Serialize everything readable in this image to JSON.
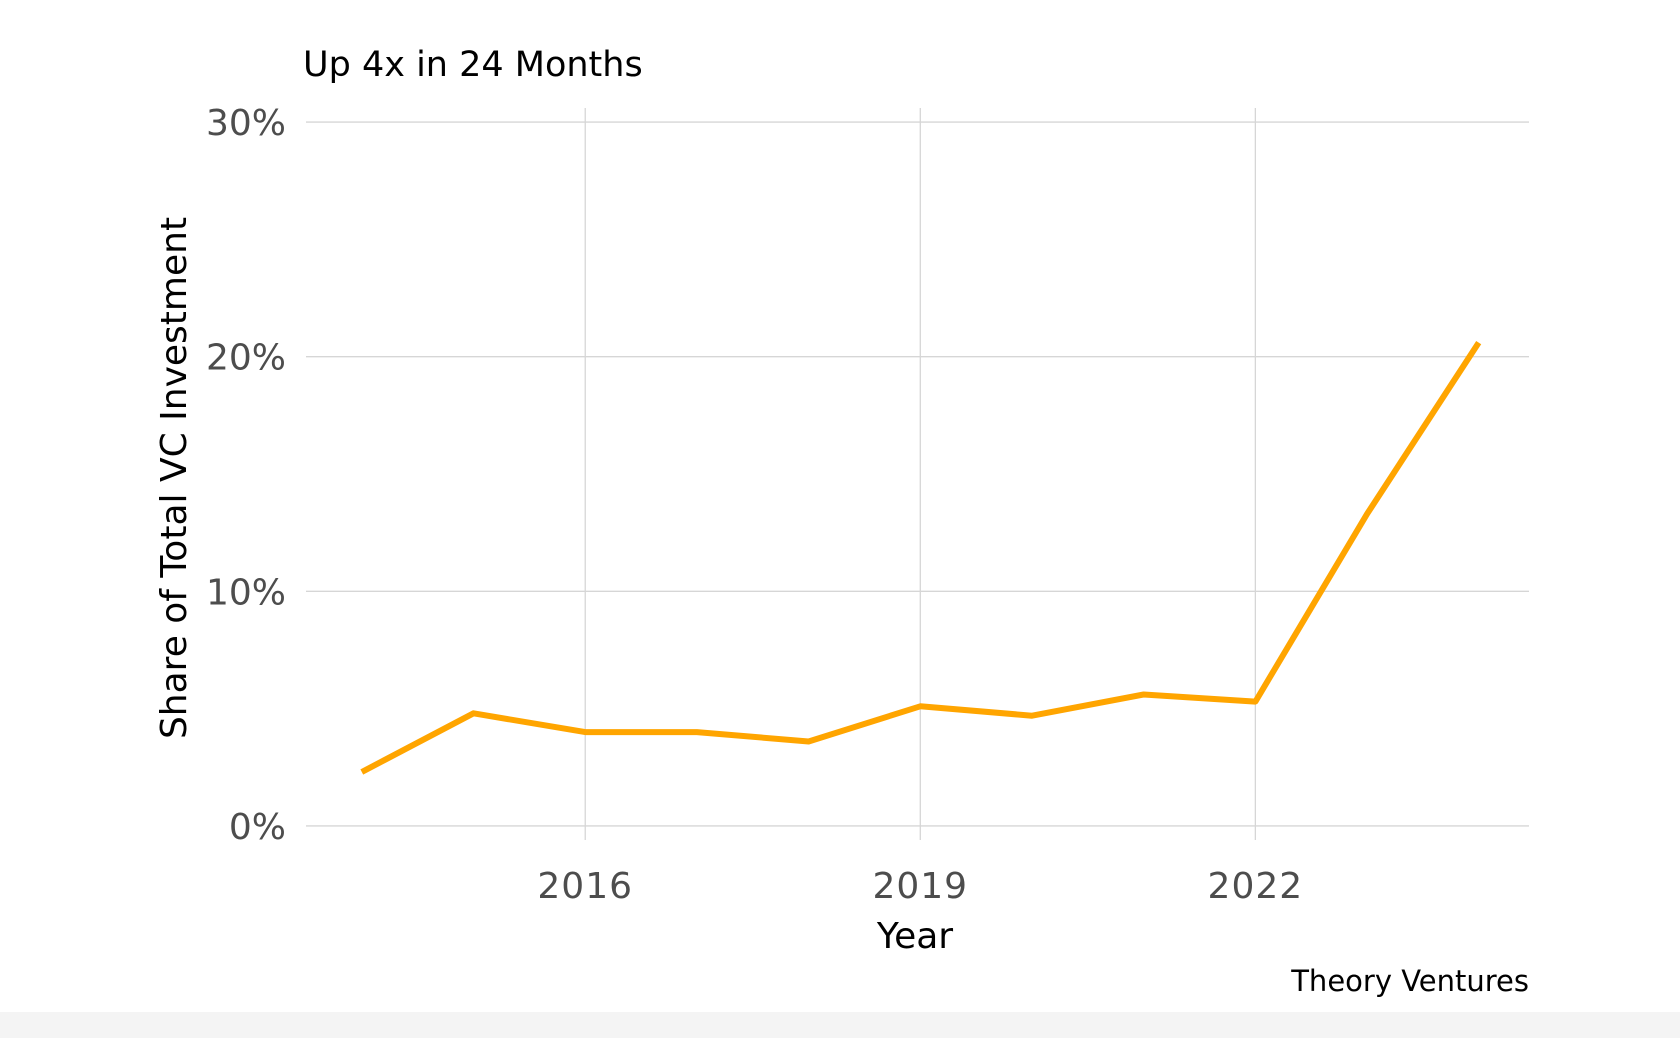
{
  "chart_data": {
    "type": "line",
    "title": "",
    "subtitle": "Up 4x in 24 Months",
    "xlabel": "Year",
    "ylabel": "Share of Total VC Investment",
    "caption": "Theory Ventures",
    "xlim": [
      2013.5,
      2024.45
    ],
    "ylim": [
      -0.6,
      30.6
    ],
    "x_ticks": [
      2016,
      2019,
      2022
    ],
    "x_tick_labels": [
      "2016",
      "2019",
      "2022"
    ],
    "y_ticks": [
      0,
      10,
      20,
      30
    ],
    "y_tick_labels": [
      "0%",
      "10%",
      "20%",
      "30%"
    ],
    "grid": true,
    "series": [
      {
        "color": "#ffa500",
        "x": [
          2014,
          2015,
          2016,
          2017,
          2018,
          2019,
          2020,
          2021,
          2022,
          2023,
          2024
        ],
        "y": [
          2.3,
          4.8,
          4.0,
          4.0,
          3.6,
          5.1,
          4.7,
          5.6,
          5.3,
          13.3,
          20.6
        ]
      }
    ]
  }
}
